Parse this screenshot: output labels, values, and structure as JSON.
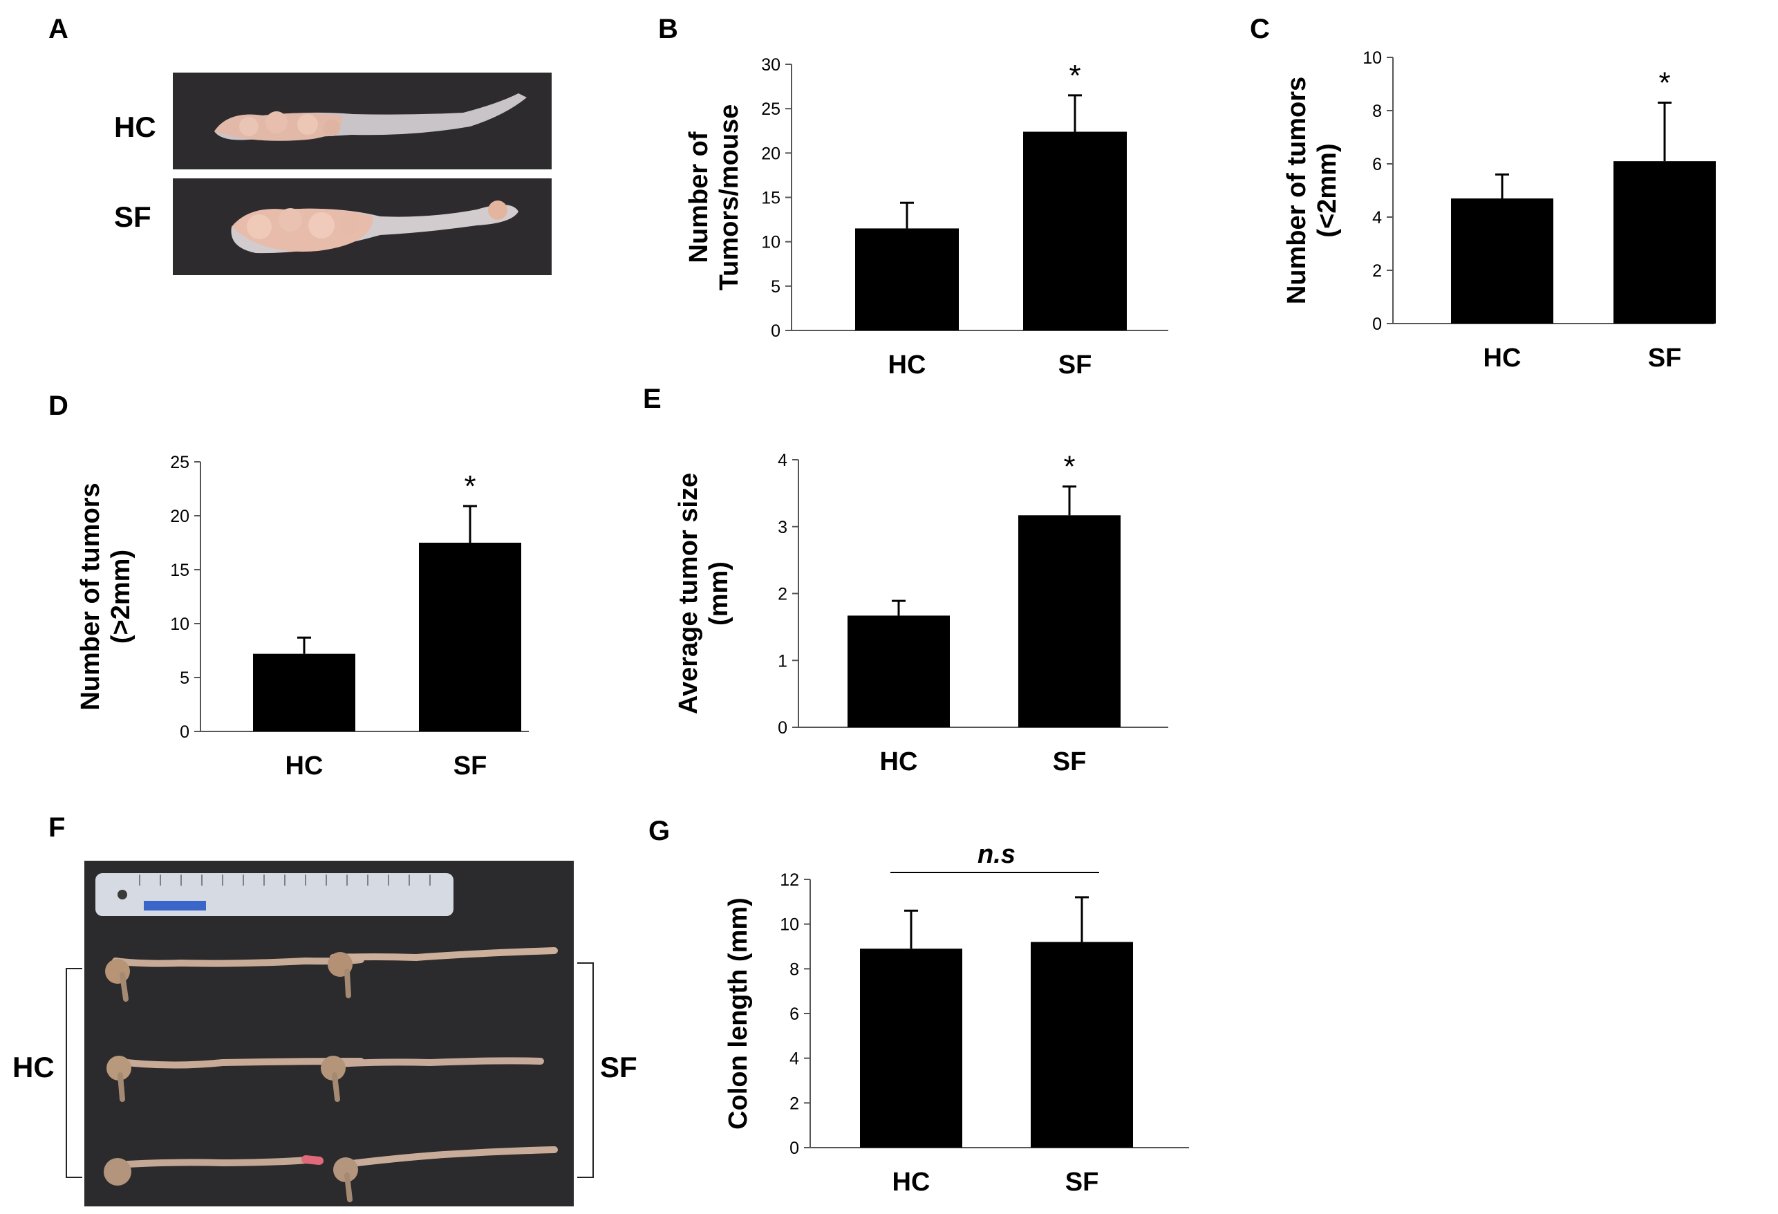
{
  "panels": {
    "A": {
      "letter": "A",
      "labels": [
        "HC",
        "SF"
      ]
    },
    "F": {
      "letter": "F",
      "labels": [
        "HC",
        "SF"
      ]
    }
  },
  "colors": {
    "bar": "#000000",
    "photo_background": "#2b2a2c",
    "tissue": "#d9b4a4",
    "ruler": "#d8dbe2",
    "ruler_tag": "#3a66c9"
  },
  "chart_data": [
    {
      "panel": "B",
      "type": "bar",
      "categories": [
        "HC",
        "SF"
      ],
      "values": [
        11.5,
        22.4
      ],
      "errors": [
        2.9,
        4.1
      ],
      "significance": [
        "",
        "*"
      ],
      "ylabel": [
        "Number of",
        "Tumors/mouse"
      ],
      "ylim": [
        0,
        30
      ],
      "yticks": [
        0,
        5,
        10,
        15,
        20,
        25,
        30
      ],
      "yticklabels": [
        "0",
        "5",
        "10",
        "15",
        "20",
        "25",
        "30"
      ]
    },
    {
      "panel": "C",
      "type": "bar",
      "categories": [
        "HC",
        "SF"
      ],
      "values": [
        4.7,
        6.1
      ],
      "errors": [
        0.9,
        2.2
      ],
      "significance": [
        "",
        "*"
      ],
      "ylabel": [
        "Number of tumors",
        "(<2mm)"
      ],
      "ylim": [
        0,
        10
      ],
      "yticks": [
        0,
        2,
        4,
        6,
        8,
        10
      ],
      "yticklabels": [
        "0",
        "2",
        "4",
        "6",
        "8",
        "10"
      ]
    },
    {
      "panel": "D",
      "type": "bar",
      "categories": [
        "HC",
        "SF"
      ],
      "values": [
        7.2,
        17.5
      ],
      "errors": [
        1.5,
        3.4
      ],
      "significance": [
        "",
        "*"
      ],
      "ylabel": [
        "Number of tumors",
        "(>2mm)"
      ],
      "ylim": [
        0,
        25
      ],
      "yticks": [
        0,
        5,
        10,
        15,
        20,
        25
      ],
      "yticklabels": [
        "0",
        "5",
        "10",
        "15",
        "20",
        "25"
      ]
    },
    {
      "panel": "E",
      "type": "bar",
      "categories": [
        "HC",
        "SF"
      ],
      "values": [
        1.67,
        3.17
      ],
      "errors": [
        0.22,
        0.43
      ],
      "significance": [
        "",
        "*"
      ],
      "ylabel": [
        "Average tumor size",
        "(mm)"
      ],
      "ylim": [
        0,
        4
      ],
      "yticks": [
        0,
        1,
        2,
        3,
        4
      ],
      "yticklabels": [
        "0",
        "1",
        "2",
        "3",
        "4"
      ]
    },
    {
      "panel": "G",
      "type": "bar",
      "categories": [
        "HC",
        "SF"
      ],
      "values": [
        8.9,
        9.2
      ],
      "errors": [
        1.7,
        2.0
      ],
      "significance": [
        "",
        ""
      ],
      "bracket_label": "n.s",
      "ylabel": [
        "Colon length (mm)"
      ],
      "ylim": [
        0,
        12
      ],
      "yticks": [
        0,
        2,
        4,
        6,
        8,
        10,
        12
      ],
      "yticklabels": [
        "0",
        "2",
        "4",
        "6",
        "8",
        "10",
        "12"
      ]
    }
  ]
}
